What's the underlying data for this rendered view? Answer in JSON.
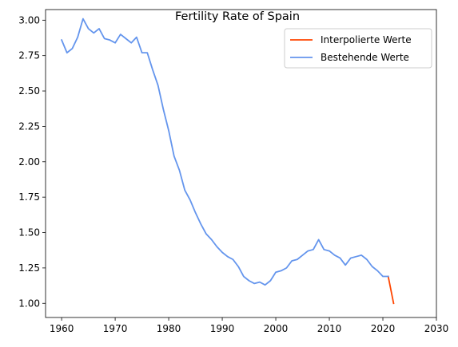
{
  "chart_data": {
    "type": "line",
    "title": "Fertility Rate of Spain",
    "xlabel": "",
    "ylabel": "",
    "xlim": [
      1957,
      2030
    ],
    "ylim": [
      0.9,
      3.075
    ],
    "xticks": [
      1960,
      1970,
      1980,
      1990,
      2000,
      2010,
      2020,
      2030
    ],
    "yticks": [
      1.0,
      1.25,
      1.5,
      1.75,
      2.0,
      2.25,
      2.5,
      2.75,
      3.0
    ],
    "ytick_labels": [
      "1.00",
      "1.25",
      "1.50",
      "1.75",
      "2.00",
      "2.25",
      "2.50",
      "2.75",
      "3.00"
    ],
    "grid": false,
    "legend_position": "top-right",
    "series": [
      {
        "name": "Interpolierte Werte",
        "color": "#ff4500",
        "x": [
          2021,
          2022
        ],
        "y": [
          1.19,
          1.0
        ]
      },
      {
        "name": "Bestehende Werte",
        "color": "#6495ed",
        "x": [
          1960,
          1961,
          1962,
          1963,
          1964,
          1965,
          1966,
          1967,
          1968,
          1969,
          1970,
          1971,
          1972,
          1973,
          1974,
          1975,
          1976,
          1977,
          1978,
          1979,
          1980,
          1981,
          1982,
          1983,
          1984,
          1985,
          1986,
          1987,
          1988,
          1989,
          1990,
          1991,
          1992,
          1993,
          1994,
          1995,
          1996,
          1997,
          1998,
          1999,
          2000,
          2001,
          2002,
          2003,
          2004,
          2005,
          2006,
          2007,
          2008,
          2009,
          2010,
          2011,
          2012,
          2013,
          2014,
          2015,
          2016,
          2017,
          2018,
          2019,
          2020,
          2021
        ],
        "y": [
          2.86,
          2.77,
          2.8,
          2.88,
          3.01,
          2.94,
          2.91,
          2.94,
          2.87,
          2.86,
          2.84,
          2.9,
          2.87,
          2.84,
          2.88,
          2.77,
          2.77,
          2.65,
          2.54,
          2.37,
          2.22,
          2.04,
          1.94,
          1.8,
          1.73,
          1.64,
          1.56,
          1.49,
          1.45,
          1.4,
          1.36,
          1.33,
          1.31,
          1.26,
          1.19,
          1.16,
          1.14,
          1.15,
          1.13,
          1.16,
          1.22,
          1.23,
          1.25,
          1.3,
          1.31,
          1.34,
          1.37,
          1.38,
          1.45,
          1.38,
          1.37,
          1.34,
          1.32,
          1.27,
          1.32,
          1.33,
          1.34,
          1.31,
          1.26,
          1.23,
          1.19,
          1.19
        ]
      }
    ]
  }
}
